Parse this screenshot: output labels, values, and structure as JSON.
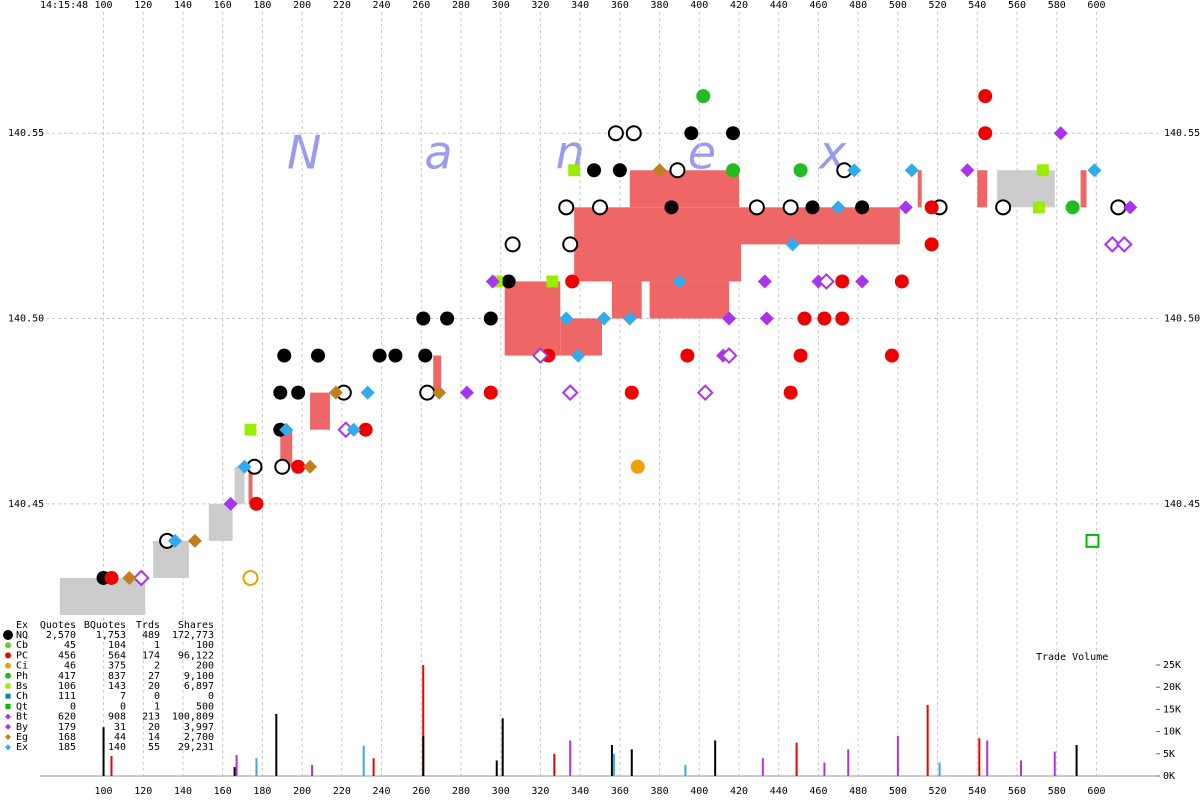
{
  "chart_data": [
    {
      "type": "scatter",
      "time_label": "14:15:48",
      "watermark": "Nanex",
      "xlim": [
        68,
        632
      ],
      "xticks": [
        100,
        120,
        140,
        160,
        180,
        200,
        220,
        240,
        260,
        280,
        300,
        320,
        340,
        360,
        380,
        400,
        420,
        440,
        460,
        480,
        500,
        520,
        540,
        560,
        580,
        600
      ],
      "ylim": [
        140.42,
        140.58
      ],
      "yticks": [
        140.45,
        {
          "value": 140.5,
          "label": "140.50"
        },
        140.55
      ],
      "grid": true,
      "bands": [
        {
          "x0": 78,
          "x1": 121,
          "low": 140.42,
          "high": 140.43,
          "color": "#cccccc"
        },
        {
          "x0": 125,
          "x1": 143,
          "low": 140.43,
          "high": 140.44,
          "color": "#cccccc"
        },
        {
          "x0": 153,
          "x1": 165,
          "low": 140.44,
          "high": 140.45,
          "color": "#cccccc"
        },
        {
          "x0": 166,
          "x1": 171,
          "low": 140.45,
          "high": 140.46,
          "color": "#cccccc"
        },
        {
          "x0": 550,
          "x1": 579,
          "low": 140.53,
          "high": 140.54,
          "color": "#cccccc"
        },
        {
          "x0": 173,
          "x1": 175,
          "low": 140.45,
          "high": 140.46,
          "color": "#ee6666"
        },
        {
          "x0": 189,
          "x1": 195,
          "low": 140.46,
          "high": 140.47,
          "color": "#ee6666"
        },
        {
          "x0": 204,
          "x1": 214,
          "low": 140.47,
          "high": 140.48,
          "color": "#ee6666"
        },
        {
          "x0": 266,
          "x1": 270,
          "low": 140.48,
          "high": 140.49,
          "color": "#ee6666"
        },
        {
          "x0": 302,
          "x1": 330,
          "low": 140.49,
          "high": 140.51,
          "color": "#ee6666"
        },
        {
          "x0": 330,
          "x1": 351,
          "low": 140.49,
          "high": 140.5,
          "color": "#ee6666"
        },
        {
          "x0": 337,
          "x1": 421,
          "low": 140.51,
          "high": 140.53,
          "color": "#ee6666"
        },
        {
          "x0": 356,
          "x1": 371,
          "low": 140.5,
          "high": 140.51,
          "color": "#ee6666"
        },
        {
          "x0": 375,
          "x1": 415,
          "low": 140.5,
          "high": 140.51,
          "color": "#ee6666"
        },
        {
          "x0": 365,
          "x1": 420,
          "low": 140.53,
          "high": 140.54,
          "color": "#ee6666"
        },
        {
          "x0": 421,
          "x1": 501,
          "low": 140.52,
          "high": 140.53,
          "color": "#ee6666"
        },
        {
          "x0": 510,
          "x1": 512,
          "low": 140.53,
          "high": 140.54,
          "color": "#ee6666"
        },
        {
          "x0": 540,
          "x1": 545,
          "low": 140.53,
          "high": 140.54,
          "color": "#ee6666"
        },
        {
          "x0": 592,
          "x1": 595,
          "low": 140.53,
          "high": 140.54,
          "color": "#ee6666"
        }
      ],
      "series": [
        {
          "name": "NQ",
          "color": "#000000",
          "marker": "circle",
          "x": [
            100,
            189,
            198,
            191,
            208,
            239,
            247,
            261,
            262,
            273,
            295,
            304,
            347,
            360,
            396,
            417,
            386,
            482,
            457,
            189
          ],
          "values": [
            140.43,
            140.48,
            140.48,
            140.49,
            140.49,
            140.49,
            140.49,
            140.5,
            140.49,
            140.5,
            140.5,
            140.51,
            140.54,
            140.54,
            140.55,
            140.55,
            140.53,
            140.53,
            140.53,
            140.47
          ]
        },
        {
          "name": "NQ",
          "color": "#000000",
          "marker": "ring",
          "x": [
            132,
            190,
            221,
            263,
            306,
            335,
            333,
            350,
            358,
            367,
            389,
            429,
            446,
            473,
            521,
            611,
            553,
            176
          ],
          "values": [
            140.44,
            140.46,
            140.48,
            140.48,
            140.52,
            140.52,
            140.53,
            140.53,
            140.55,
            140.55,
            140.54,
            140.53,
            140.53,
            140.54,
            140.53,
            140.53,
            140.53,
            140.46
          ]
        },
        {
          "name": "PC",
          "color": "#ee0000",
          "marker": "circle",
          "x": [
            104,
            177,
            198,
            232,
            295,
            324,
            336,
            394,
            446,
            451,
            453,
            472,
            497,
            502,
            517,
            517,
            544,
            544,
            366,
            463,
            472
          ],
          "values": [
            140.43,
            140.45,
            140.46,
            140.47,
            140.48,
            140.49,
            140.51,
            140.49,
            140.48,
            140.49,
            140.5,
            140.51,
            140.49,
            140.51,
            140.52,
            140.53,
            140.56,
            140.55,
            140.48,
            140.5,
            140.5
          ]
        },
        {
          "name": "Ci",
          "color": "#f0a000",
          "marker": "circle",
          "x": [
            369
          ],
          "values": [
            140.46
          ]
        },
        {
          "name": "Ci",
          "color": "#f0a000",
          "marker": "ring",
          "x": [
            174
          ],
          "values": [
            140.43
          ]
        },
        {
          "name": "Ph",
          "color": "#22bb22",
          "marker": "circle",
          "x": [
            402,
            451,
            417,
            588
          ],
          "values": [
            140.56,
            140.54,
            140.54,
            140.53
          ]
        },
        {
          "name": "Bs",
          "color": "#99ee00",
          "marker": "square",
          "x": [
            174,
            337,
            298,
            571,
            573,
            326
          ],
          "values": [
            140.47,
            140.54,
            140.51,
            140.53,
            140.54,
            140.51
          ]
        },
        {
          "name": "Qt",
          "color": "#00bb00",
          "marker": "square-open",
          "x": [
            598
          ],
          "values": [
            140.44
          ]
        },
        {
          "name": "Bt",
          "color": "#aa33ee",
          "marker": "diamond",
          "x": [
            164,
            283,
            296,
            433,
            434,
            415,
            412,
            460,
            482,
            504,
            535,
            582,
            617
          ],
          "values": [
            140.45,
            140.48,
            140.51,
            140.51,
            140.5,
            140.5,
            140.49,
            140.51,
            140.51,
            140.53,
            140.54,
            140.55,
            140.53
          ]
        },
        {
          "name": "By",
          "color": "#aa33ee",
          "marker": "diamond-open",
          "x": [
            222,
            320,
            335,
            403,
            415,
            464,
            608,
            614,
            119
          ],
          "values": [
            140.47,
            140.49,
            140.48,
            140.48,
            140.49,
            140.51,
            140.52,
            140.52,
            140.43
          ]
        },
        {
          "name": "Eg",
          "color": "#c08020",
          "marker": "diamond",
          "x": [
            113,
            146,
            204,
            217,
            269,
            380
          ],
          "values": [
            140.43,
            140.44,
            140.46,
            140.48,
            140.48,
            140.54
          ]
        },
        {
          "name": "Ex",
          "color": "#33aaee",
          "marker": "diamond",
          "x": [
            136,
            171,
            192,
            226,
            233,
            333,
            339,
            352,
            365,
            390,
            447,
            470,
            507,
            599,
            478
          ],
          "values": [
            140.44,
            140.46,
            140.47,
            140.47,
            140.48,
            140.5,
            140.49,
            140.5,
            140.5,
            140.51,
            140.52,
            140.53,
            140.54,
            140.54,
            140.54
          ]
        }
      ]
    },
    {
      "type": "bar",
      "title": "Trade Volume",
      "xlim": [
        68,
        632
      ],
      "xticks": [
        100,
        120,
        140,
        160,
        180,
        200,
        220,
        240,
        260,
        280,
        300,
        320,
        340,
        360,
        380,
        400,
        420,
        440,
        460,
        480,
        500,
        520,
        540,
        560,
        580,
        600
      ],
      "ylim": [
        0,
        25000
      ],
      "yticks": [
        {
          "value": 0,
          "label": "0K"
        },
        {
          "value": 5000,
          "label": "5K"
        },
        {
          "value": 10000,
          "label": "10K"
        },
        {
          "value": 15000,
          "label": "15K"
        },
        {
          "value": 20000,
          "label": "20K"
        },
        {
          "value": 25000,
          "label": "25K"
        }
      ],
      "series": [
        {
          "name": "PC",
          "color": "#ee0000",
          "x": [
            261,
            515,
            449,
            541,
            104,
            236,
            327
          ],
          "values": [
            25000,
            16000,
            7500,
            8500,
            4500,
            4000,
            5000
          ]
        },
        {
          "name": "NQ",
          "color": "#000000",
          "x": [
            100,
            187,
            261,
            301,
            408,
            590,
            356,
            366,
            166,
            298
          ],
          "values": [
            11000,
            14000,
            9000,
            13000,
            8000,
            7000,
            7000,
            6000,
            2000,
            3500
          ]
        },
        {
          "name": "Bt",
          "color": "#aa33ee",
          "x": [
            500,
            545,
            475,
            579,
            167,
            335,
            432,
            463,
            205,
            562
          ],
          "values": [
            9000,
            8000,
            6000,
            5500,
            4700,
            8000,
            4000,
            3000,
            2500,
            3500
          ]
        },
        {
          "name": "Ex",
          "color": "#33aaee",
          "x": [
            231,
            177,
            357,
            521,
            393
          ],
          "values": [
            6800,
            4000,
            5000,
            3000,
            2500
          ]
        }
      ]
    }
  ],
  "stats_table": {
    "header": [
      "Ex",
      "Quotes",
      "BQuotes",
      "Trds",
      "Shares"
    ],
    "rows": [
      {
        "cells": [
          "NQ",
          "2,570",
          "1,753",
          "489",
          "172,773"
        ],
        "color": "#000000",
        "marker": "circle"
      },
      {
        "cells": [
          "Cb",
          "45",
          "104",
          "1",
          "100"
        ],
        "color": "#66cc33",
        "marker": "circle"
      },
      {
        "cells": [
          "PC",
          "456",
          "564",
          "174",
          "96,122"
        ],
        "color": "#ee0000",
        "marker": "circle"
      },
      {
        "cells": [
          "Ci",
          "46",
          "375",
          "2",
          "200"
        ],
        "color": "#f0a000",
        "marker": "circle"
      },
      {
        "cells": [
          "Ph",
          "417",
          "837",
          "27",
          "9,100"
        ],
        "color": "#22bb22",
        "marker": "circle"
      },
      {
        "cells": [
          "Bs",
          "106",
          "143",
          "20",
          "6,897"
        ],
        "color": "#99ee00",
        "marker": "square"
      },
      {
        "cells": [
          "Ch",
          "111",
          "7",
          "0",
          "0"
        ],
        "color": "#118899",
        "marker": "square"
      },
      {
        "cells": [
          "Qt",
          "0",
          "0",
          "1",
          "500"
        ],
        "color": "#00bb00",
        "marker": "square"
      },
      {
        "cells": [
          "Bt",
          "620",
          "908",
          "213",
          "100,809"
        ],
        "color": "#aa33ee",
        "marker": "diamond"
      },
      {
        "cells": [
          "By",
          "179",
          "31",
          "20",
          "3,997"
        ],
        "color": "#aa33ee",
        "marker": "diamond"
      },
      {
        "cells": [
          "Eg",
          "168",
          "44",
          "14",
          "2,700"
        ],
        "color": "#c08020",
        "marker": "diamond"
      },
      {
        "cells": [
          "Ex",
          "185",
          "140",
          "55",
          "29,231"
        ],
        "color": "#33aaee",
        "marker": "diamond"
      }
    ]
  }
}
